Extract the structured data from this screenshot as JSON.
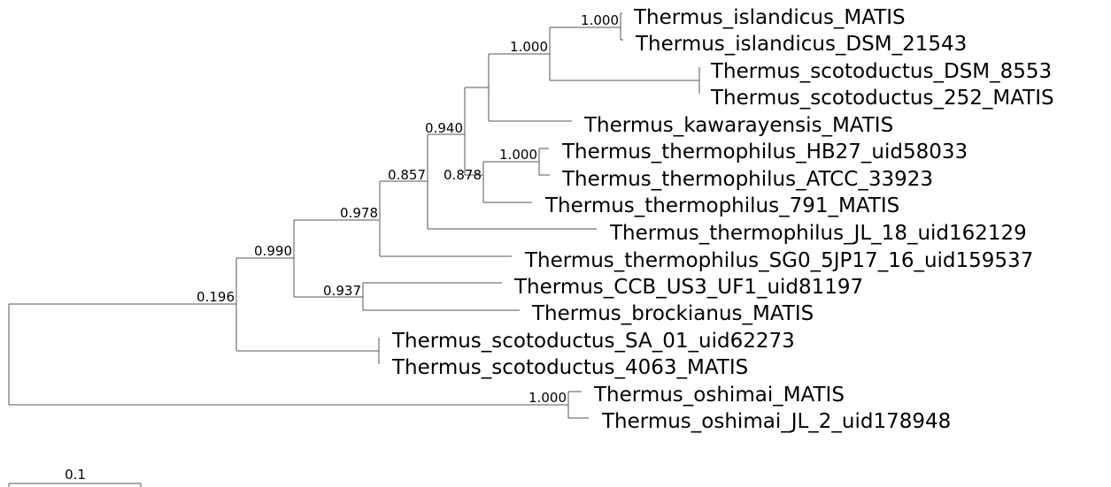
{
  "tree": {
    "newick": "(((((((Thermus_islandicus_MATIS,Thermus_islandicus_DSM_21543)1.000,(Thermus_scotoductus_DSM_8553,Thermus_scotoductus_252_MATIS)),Thermus_kawarayensis_MATIS)0.940,((Thermus_thermophilus_HB27_uid58033,Thermus_thermophilus_ATCC_33923)1.000,Thermus_thermophilus_791_MATIS)0.878,Thermus_thermophilus_JL_18_uid162129)0.857,Thermus_thermophilus_SG0_5JP17_16_uid159537)0.978,(Thermus_CCB_US3_UF1_uid81197,Thermus_brockianus_MATIS)0.937)0.990,(Thermus_scotoductus_SA_01_uid62273,Thermus_scotoductus_4063_MATIS))0.196,(Thermus_oshimai_MATIS,Thermus_oshimai_JL_2_uid178948)1.000);",
    "leaves": [
      "Thermus_islandicus_MATIS",
      "Thermus_islandicus_DSM_21543",
      "Thermus_scotoductus_DSM_8553",
      "Thermus_scotoductus_252_MATIS",
      "Thermus_kawarayensis_MATIS",
      "Thermus_thermophilus_HB27_uid58033",
      "Thermus_thermophilus_ATCC_33923",
      "Thermus_thermophilus_791_MATIS",
      "Thermus_thermophilus_JL_18_uid162129",
      "Thermus_thermophilus_SG0_5JP17_16_uid159537",
      "Thermus_CCB_US3_UF1_uid81197",
      "Thermus_brockianus_MATIS",
      "Thermus_scotoductus_SA_01_uid62273",
      "Thermus_scotoductus_4063_MATIS",
      "Thermus_oshimai_MATIS",
      "Thermus_oshimai_JL_2_uid178948"
    ],
    "support_values": {
      "islandicus_pair": "1.000",
      "islandicus_scotoductus_clade": "1.000",
      "upper_clade": "0.940",
      "hb27_atcc_pair": "1.000",
      "thermophilus_clade": "0.878",
      "clade_0857": "0.857",
      "clade_0978": "0.978",
      "ccb_brockianus_pair": "0.937",
      "clade_0990": "0.990",
      "root_split": "0.196",
      "oshimai_pair": "1.000"
    },
    "scale_bar": {
      "label": "0.1",
      "length": 0.1
    },
    "line_color": "#555555"
  }
}
